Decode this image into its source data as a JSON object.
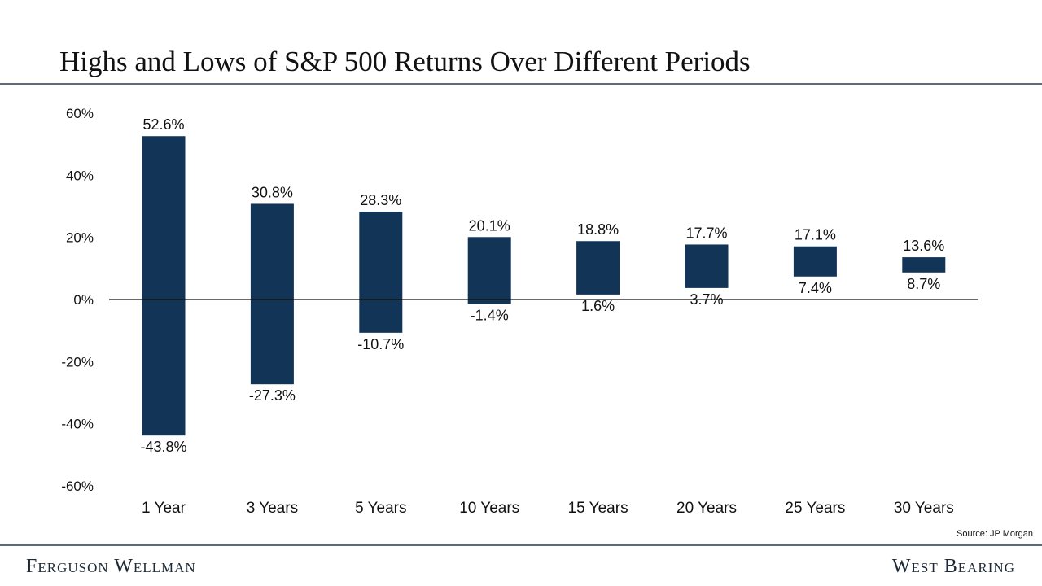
{
  "header": {
    "title": "Highs and Lows of S&P 500 Returns Over Different Periods"
  },
  "footer": {
    "source": "Source: JP Morgan",
    "brand_left": "Ferguson Wellman",
    "brand_right": "West Bearing"
  },
  "colors": {
    "bar": "#123456",
    "zero_line": "#111111",
    "rule": "#5b6b7a"
  },
  "chart_data": {
    "type": "bar",
    "subtype": "floating-range",
    "title": "Highs and Lows of S&P 500 Returns Over Different Periods",
    "categories": [
      "1 Year",
      "3 Years",
      "5 Years",
      "10 Years",
      "15 Years",
      "20 Years",
      "25 Years",
      "30 Years"
    ],
    "highs": [
      52.6,
      30.8,
      28.3,
      20.1,
      18.8,
      17.7,
      17.1,
      13.6
    ],
    "lows": [
      -43.8,
      -27.3,
      -10.7,
      -1.4,
      1.6,
      3.7,
      7.4,
      8.7
    ],
    "high_labels": [
      "52.6%",
      "30.8%",
      "28.3%",
      "20.1%",
      "18.8%",
      "17.7%",
      "17.1%",
      "13.6%"
    ],
    "low_labels": [
      "-43.8%",
      "-27.3%",
      "-10.7%",
      "-1.4%",
      "1.6%",
      "3.7%",
      "7.4%",
      "8.7%"
    ],
    "ylim": [
      -60,
      60
    ],
    "yticks": [
      60,
      40,
      20,
      0,
      -20,
      -40,
      -60
    ],
    "ytick_labels": [
      "60%",
      "40%",
      "20%",
      "0%",
      "-20%",
      "-40%",
      "-60%"
    ],
    "xlabel": "",
    "ylabel": "",
    "grid": false,
    "legend": "none"
  }
}
